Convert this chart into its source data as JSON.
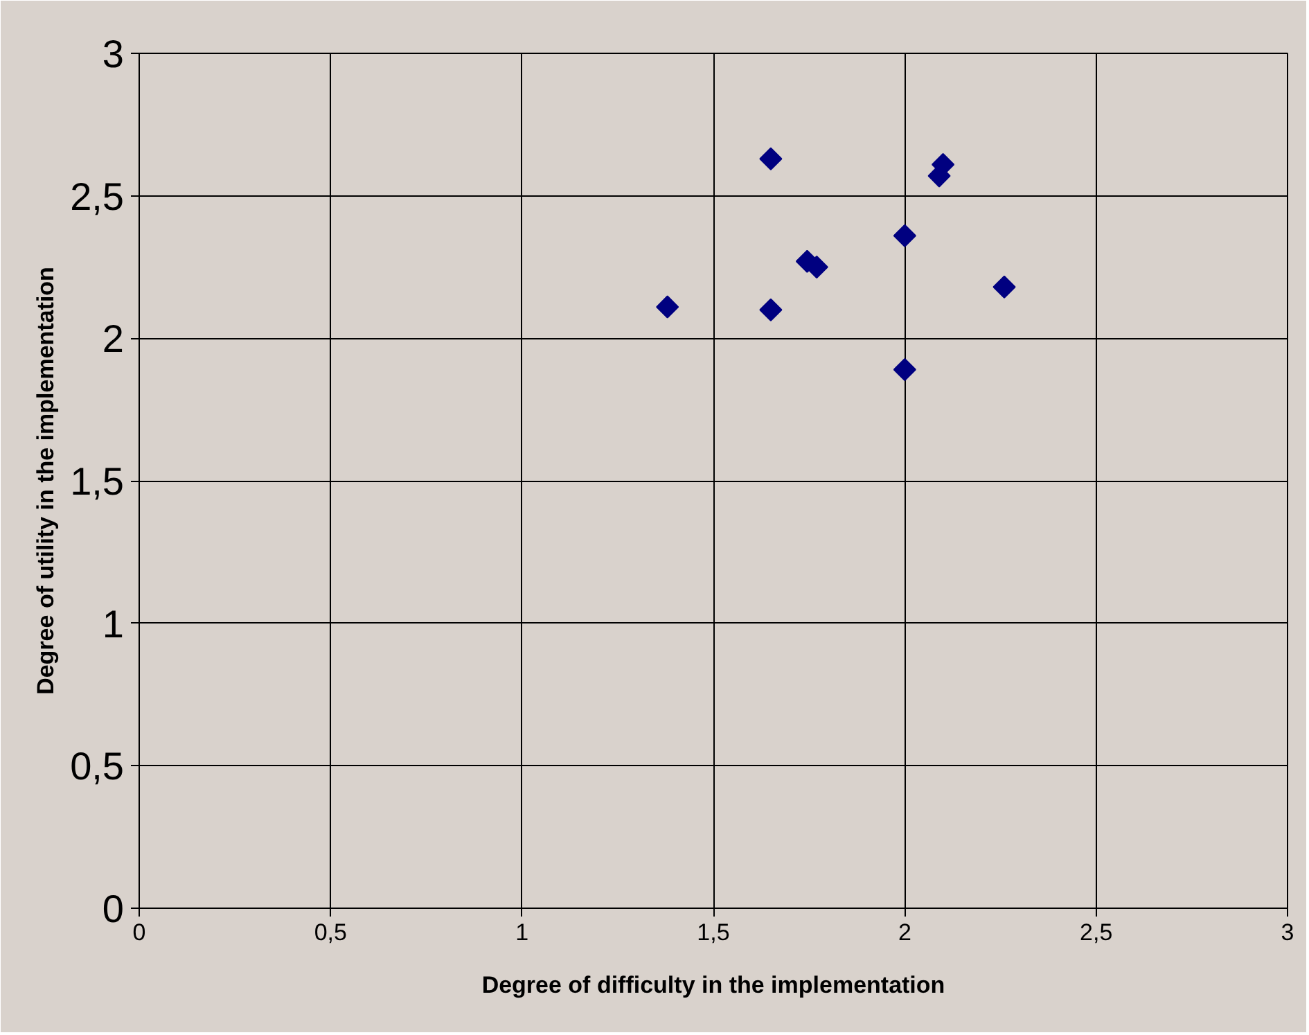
{
  "chart_data": {
    "type": "scatter",
    "xlabel": "Degree of difficulty in the implementation",
    "ylabel": "Degree of utility in the implementation",
    "x": [
      1.38,
      1.65,
      1.65,
      1.745,
      1.77,
      2.0,
      2.0,
      2.09,
      2.1,
      2.26
    ],
    "series": [
      {
        "color": "#000080",
        "values": [
          2.11,
          2.63,
          2.1,
          2.27,
          2.25,
          2.36,
          1.89,
          2.57,
          2.61,
          2.18
        ]
      }
    ],
    "xlim": [
      0,
      3
    ],
    "ylim": [
      0,
      3
    ],
    "xticks": [
      0,
      {
        "value": 0.5,
        "label": "0,5"
      },
      1,
      {
        "value": 1.5,
        "label": "1,5"
      },
      2,
      {
        "value": 2.5,
        "label": "2,5"
      },
      3
    ],
    "yticks": [
      0,
      {
        "value": 0.5,
        "label": "0,5"
      },
      1,
      {
        "value": 1.5,
        "label": "1,5"
      },
      2,
      {
        "value": 2.5,
        "label": "2,5"
      },
      3
    ],
    "grid": true,
    "marker": "diamond"
  }
}
